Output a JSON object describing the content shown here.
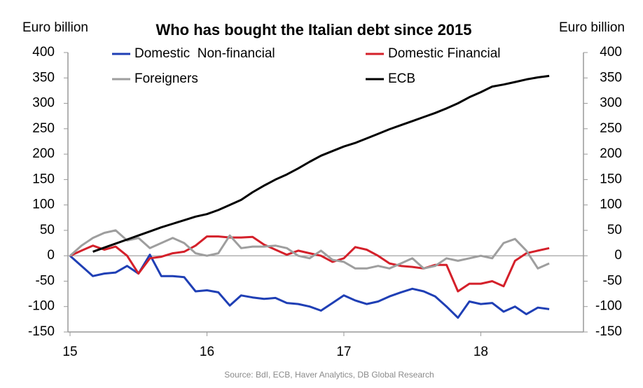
{
  "chart_data": {
    "type": "line",
    "title": "Who has bought the Italian debt since 2015",
    "y_label": "Euro billion",
    "y2_label": "Euro billion",
    "source": "Source: BdI, ECB, Haver Analytics, DB Global Research",
    "x": [
      15,
      15.0833,
      15.1667,
      15.25,
      15.3333,
      15.4167,
      15.5,
      15.5833,
      15.6667,
      15.75,
      15.8333,
      15.9167,
      16,
      16.0833,
      16.1667,
      16.25,
      16.3333,
      16.4167,
      16.5,
      16.5833,
      16.6667,
      16.75,
      16.8333,
      16.9167,
      17,
      17.0833,
      17.1667,
      17.25,
      17.3333,
      17.4167,
      17.5,
      17.5833,
      17.6667,
      17.75,
      17.8333,
      17.9167,
      18,
      18.0833,
      18.1667,
      18.25,
      18.3333,
      18.4167,
      18.5
    ],
    "xlim": [
      15,
      18.75
    ],
    "xticks": [
      15,
      16,
      17,
      18
    ],
    "ylim": [
      -150,
      400
    ],
    "yticks": [
      -150,
      -100,
      -50,
      0,
      50,
      100,
      150,
      200,
      250,
      300,
      350,
      400
    ],
    "y2lim": [
      -150,
      400
    ],
    "y2ticks": [
      -150,
      -100,
      -50,
      0,
      50,
      100,
      150,
      200,
      250,
      300,
      350,
      400
    ],
    "zero_line": true,
    "legend": "top",
    "series": [
      {
        "name": "Domestic  Non-financial",
        "color": "#1f3fb5",
        "values": [
          0,
          -20,
          -40,
          -35,
          -33,
          -20,
          -35,
          2,
          -40,
          -40,
          -42,
          -70,
          -68,
          -72,
          -98,
          -78,
          -82,
          -85,
          -83,
          -93,
          -95,
          -100,
          -108,
          -93,
          -78,
          -88,
          -95,
          -90,
          -80,
          -72,
          -65,
          -70,
          -80,
          -100,
          -122,
          -90,
          -95,
          -93,
          -110,
          -100,
          -115,
          -102,
          -105
        ]
      },
      {
        "name": "Domestic Financial",
        "color": "#d4202a",
        "values": [
          0,
          10,
          20,
          12,
          18,
          0,
          -35,
          -5,
          -2,
          5,
          8,
          20,
          38,
          38,
          36,
          36,
          37,
          22,
          12,
          2,
          10,
          5,
          0,
          -12,
          -5,
          17,
          12,
          0,
          -15,
          -20,
          -22,
          -25,
          -18,
          -18,
          -70,
          -55,
          -55,
          -50,
          -60,
          -10,
          5,
          10,
          15
        ]
      },
      {
        "name": "Foreigners",
        "color": "#9e9e9e",
        "values": [
          0,
          20,
          35,
          45,
          50,
          30,
          35,
          15,
          25,
          35,
          25,
          5,
          0,
          5,
          40,
          15,
          18,
          18,
          20,
          15,
          0,
          -5,
          10,
          -8,
          -12,
          -25,
          -25,
          -20,
          -25,
          -15,
          -5,
          -25,
          -20,
          -5,
          -10,
          -5,
          0,
          -5,
          25,
          33,
          10,
          -25,
          -15
        ]
      },
      {
        "name": "ECB",
        "color": "#000000",
        "axis": "y2",
        "values": [
          null,
          null,
          8,
          16,
          24,
          32,
          40,
          48,
          56,
          63,
          70,
          77,
          82,
          90,
          100,
          110,
          125,
          138,
          150,
          160,
          172,
          185,
          197,
          206,
          215,
          222,
          231,
          240,
          249,
          257,
          265,
          273,
          281,
          290,
          300,
          312,
          322,
          333,
          337,
          342,
          347,
          351,
          354
        ]
      }
    ]
  }
}
